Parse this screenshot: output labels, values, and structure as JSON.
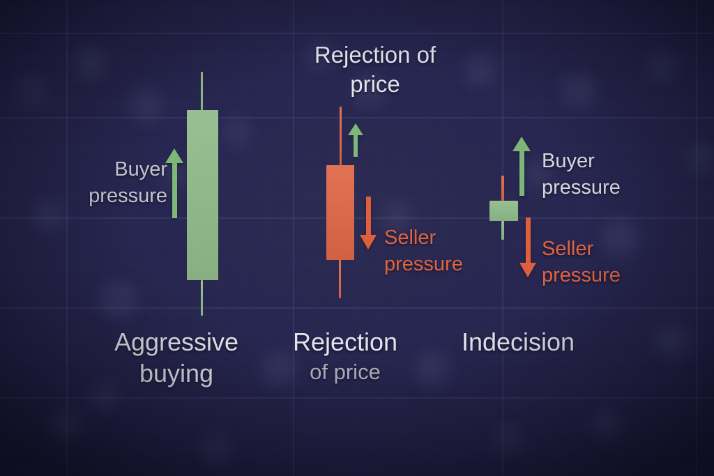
{
  "colors": {
    "green": "#90bb8a",
    "green-arrow": "#7eb678",
    "orange": "#df6747",
    "orange-arrow": "#df5f3c",
    "text-bright": "#e4e3ea",
    "text-soft": "#d7d6de",
    "text-gray": "#c5c4cd",
    "text-dim": "#b4b3bf",
    "text-orange": "#e0633e",
    "background": "#25244a",
    "grid": "#8d97c4"
  },
  "left_panel": {
    "buyer_label": {
      "line1": "Buyer",
      "line2": "pressure"
    },
    "caption": {
      "line1": "Aggressive",
      "line2": "buying"
    }
  },
  "middle_panel": {
    "top_label": {
      "line1": "Rejection of",
      "line2": "price"
    },
    "seller_label": {
      "line1": "Seller",
      "line2": "pressure"
    },
    "caption": {
      "line1": "Rejection",
      "line2": "of price"
    }
  },
  "right_panel": {
    "buyer_label": {
      "line1": "Buyer",
      "line2": "pressure"
    },
    "seller_label": {
      "line1": "Seller",
      "line2": "pressure"
    },
    "caption": "Indecision"
  },
  "candles": [
    {
      "id": "left",
      "size": "tall",
      "body": "green",
      "upper_wick": "green",
      "lower_wick": "green",
      "meaning_caption": "Aggressive buying"
    },
    {
      "id": "middle",
      "size": "medium",
      "body": "orange",
      "upper_wick": "orange",
      "lower_wick": "orange",
      "meaning_caption": "Rejection of price"
    },
    {
      "id": "right",
      "size": "small",
      "body": "green",
      "upper_wick": "orange",
      "lower_wick": "green",
      "meaning_caption": "Indecision"
    }
  ]
}
